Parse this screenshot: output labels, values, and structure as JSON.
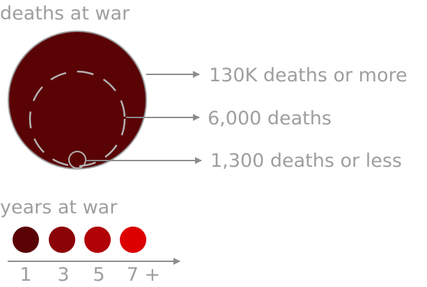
{
  "deaths_legend": {
    "title": "deaths at war",
    "levels": [
      {
        "label": "130K deaths or more"
      },
      {
        "label": "6,000 deaths"
      },
      {
        "label": "1,300 deaths or less"
      }
    ],
    "colors": {
      "fill": "#5a0305",
      "outline": "#9a9a9a",
      "guide": "#b4b4b4",
      "text": "#9e9e9e"
    }
  },
  "years_legend": {
    "title": "years at war",
    "steps": [
      {
        "label": "1",
        "color": "#5a0305"
      },
      {
        "label": "3",
        "color": "#8c0307"
      },
      {
        "label": "5",
        "color": "#b10307"
      },
      {
        "label": "7 +",
        "color": "#dc0000"
      }
    ],
    "axis_color": "#8c8c8c"
  }
}
